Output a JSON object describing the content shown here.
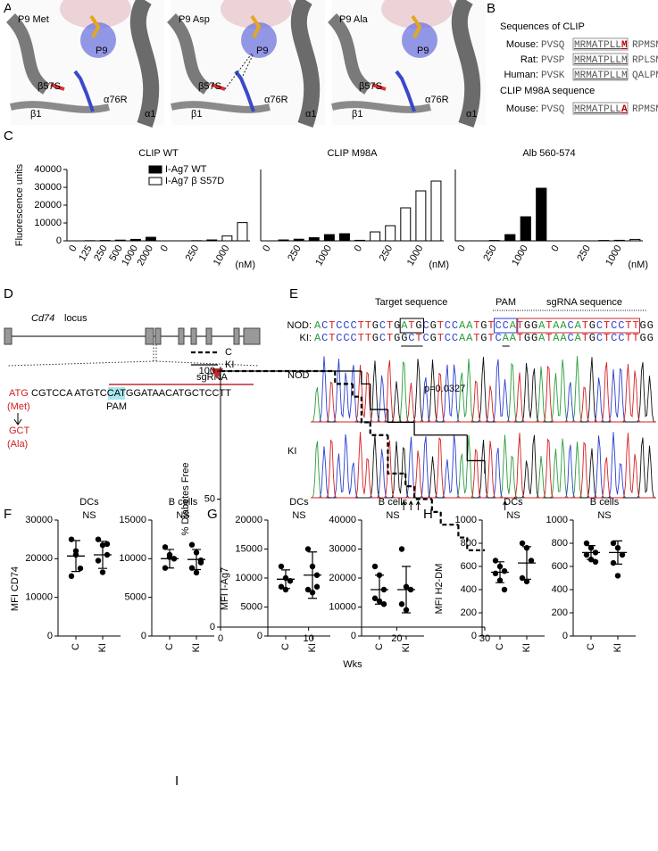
{
  "panel_labels": [
    "A",
    "B",
    "C",
    "D",
    "E",
    "F",
    "G",
    "H",
    "I"
  ],
  "structures": [
    {
      "residue": "P9 Met",
      "labels": [
        "P9",
        "β57S",
        "α76R",
        "β1",
        "α1"
      ]
    },
    {
      "residue": "P9 Asp",
      "labels": [
        "P9",
        "β57S",
        "α76R",
        "β1",
        "α1"
      ]
    },
    {
      "residue": "P9 Ala",
      "labels": [
        "P9",
        "β57S",
        "α76R",
        "β1",
        "α1"
      ]
    }
  ],
  "sequences": {
    "title": "Sequences of CLIP",
    "rows": [
      {
        "species": "Mouse:",
        "pre": "PVSQ",
        "core": "MRMATPLL",
        "p9": "M",
        "post": "RPMSM"
      },
      {
        "species": "Rat:",
        "pre": "PVSP",
        "core": "MRMATPLL",
        "p9": "M",
        "post": "RPLSM"
      },
      {
        "species": "Human:",
        "pre": "PVSK",
        "core": "MRMATPLL",
        "p9": "M",
        "post": "QALPM"
      }
    ],
    "mutant_title": "CLIP M98A sequence",
    "mutant_rows": [
      {
        "species": "Mouse:",
        "pre": "PVSQ",
        "core": "MRMATPLL",
        "p9": "A",
        "post": "RPMSM"
      }
    ]
  },
  "locus": {
    "gene": "Cd74",
    "label": "locus",
    "sgrna": "sgRNA",
    "codon": "ATG",
    "sequence": "CGTCCA ATGTCCATGGATAACATGCTCCTT",
    "pam": "PAM",
    "codon_aa": "(Met)",
    "new_codon": "GCT",
    "new_aa": "(Ala)"
  },
  "editing": {
    "target_label": "Target sequence",
    "pam_label": "PAM",
    "sgrna_label": "sgRNA sequence",
    "rows": [
      {
        "name": "NOD:",
        "sequence": "ACTCCCTTGCTGATGCGTCCAATGTCCATGGATAACATGCTCCTTGG"
      },
      {
        "name": "KI:",
        "sequence": "ACTCCCTTGCTGGCTCGTCCAATGTCAATGGATAACATGCTCCTTGG"
      }
    ],
    "tracks": [
      "NOD",
      "KI"
    ]
  },
  "chart_data": [
    {
      "type": "bar",
      "title": "CLIP WT",
      "ylabel": "Fluorescence units",
      "xlabel": "(nM)",
      "categories": [
        "0",
        "125",
        "250",
        "500",
        "1000",
        "2000",
        "0",
        null,
        "250",
        null,
        "1000",
        null
      ],
      "series": [
        {
          "name": "I-Ag7 WT",
          "color": "#000000",
          "values": [
            0,
            100,
            200,
            400,
            800,
            2000,
            null,
            null,
            null,
            null,
            null,
            null
          ]
        },
        {
          "name": "I-Ag7 β S57D",
          "color": "#ffffff",
          "values": [
            null,
            null,
            null,
            null,
            null,
            null,
            0,
            0,
            100,
            500,
            2800,
            10200
          ]
        }
      ],
      "legend": "top-left",
      "ylim": [
        0,
        40000
      ],
      "yticks": [
        0,
        10000,
        20000,
        30000,
        40000
      ]
    },
    {
      "type": "bar",
      "title": "CLIP M98A",
      "xlabel": "(nM)",
      "categories": [
        "0",
        null,
        "250",
        null,
        "1000",
        null,
        "0",
        null,
        "250",
        null,
        "1000",
        null
      ],
      "series": [
        {
          "color": "#000000",
          "values": [
            0,
            500,
            900,
            1800,
            3500,
            4000,
            null,
            null,
            null,
            null,
            null,
            null
          ]
        },
        {
          "color": "#ffffff",
          "values": [
            null,
            null,
            null,
            null,
            null,
            null,
            300,
            5000,
            8500,
            18500,
            28000,
            33500
          ]
        }
      ],
      "ylim": [
        0,
        40000
      ]
    },
    {
      "type": "bar",
      "title": "Alb 560-574",
      "xlabel": "(nM)",
      "categories": [
        "0",
        null,
        "250",
        null,
        "1000",
        null,
        "0",
        null,
        "250",
        null,
        "1000",
        null
      ],
      "series": [
        {
          "color": "#000000",
          "values": [
            0,
            0,
            200,
            3500,
            13500,
            29500,
            null,
            null,
            null,
            null,
            null,
            null
          ]
        },
        {
          "color": "#ffffff",
          "values": [
            null,
            null,
            null,
            null,
            null,
            null,
            0,
            0,
            0,
            200,
            300,
            800
          ]
        }
      ],
      "ylim": [
        0,
        40000
      ]
    },
    {
      "type": "dot",
      "title": "DCs",
      "annotation": "NS",
      "ylabel": "MFI CD74",
      "categories": [
        "C",
        "KI"
      ],
      "points": [
        [
          25000,
          22000,
          17500,
          15500,
          21000
        ],
        [
          25000,
          23500,
          21000,
          19500,
          16500,
          23800
        ]
      ],
      "means": [
        20700,
        21000
      ],
      "sds": [
        4000,
        3500
      ],
      "ylim": [
        0,
        30000
      ],
      "yticks": [
        0,
        10000,
        20000,
        30000
      ]
    },
    {
      "type": "dot",
      "title": "B cells",
      "annotation": "NS",
      "categories": [
        "C",
        "KI"
      ],
      "points": [
        [
          11500,
          10500,
          10000,
          8800,
          10200
        ],
        [
          11800,
          10800,
          9800,
          8800,
          8200,
          9500
        ]
      ],
      "means": [
        10000,
        9900
      ],
      "sds": [
        1200,
        1300
      ],
      "ylim": [
        0,
        15000
      ],
      "yticks": [
        0,
        5000,
        10000,
        15000
      ]
    },
    {
      "type": "dot",
      "title": "DCs",
      "annotation": "NS",
      "ylabel": "MFI I-Ag7",
      "categories": [
        "C",
        "KI"
      ],
      "points": [
        [
          12000,
          10000,
          9500,
          8500,
          8000
        ],
        [
          15000,
          12000,
          10500,
          8000,
          7500,
          8500
        ]
      ],
      "means": [
        9800,
        10500
      ],
      "sds": [
        1600,
        4000
      ],
      "ylim": [
        0,
        20000
      ],
      "yticks": [
        0,
        5000,
        10000,
        15000,
        20000
      ]
    },
    {
      "type": "dot",
      "title": "B cells",
      "annotation": "NS",
      "categories": [
        "C",
        "KI"
      ],
      "points": [
        [
          24000,
          21000,
          16000,
          13000,
          12000,
          11000
        ],
        [
          30000,
          17000,
          16000,
          11000,
          9000
        ]
      ],
      "means": [
        16000,
        16000
      ],
      "sds": [
        5000,
        8000
      ],
      "ylim": [
        0,
        40000
      ],
      "yticks": [
        0,
        10000,
        20000,
        30000,
        40000
      ]
    },
    {
      "type": "dot",
      "title": "DCs",
      "annotation": "NS",
      "ylabel": "MFI H2-DM",
      "categories": [
        "C",
        "KI"
      ],
      "points": [
        [
          650,
          600,
          560,
          540,
          480,
          400
        ],
        [
          800,
          760,
          650,
          500,
          470
        ]
      ],
      "means": [
        550,
        630
      ],
      "sds": [
        90,
        140
      ],
      "ylim": [
        0,
        1000
      ],
      "yticks": [
        0,
        200,
        400,
        600,
        800,
        1000
      ]
    },
    {
      "type": "dot",
      "title": "B cells",
      "annotation": "NS",
      "categories": [
        "C",
        "KI"
      ],
      "points": [
        [
          800,
          760,
          720,
          700,
          660,
          640
        ],
        [
          800,
          760,
          700,
          630,
          520
        ]
      ],
      "means": [
        720,
        720
      ],
      "sds": [
        60,
        100
      ],
      "ylim": [
        0,
        1000
      ],
      "yticks": [
        0,
        200,
        400,
        600,
        800,
        1000
      ]
    },
    {
      "type": "survival",
      "xlabel": "Wks",
      "ylabel": "% Diabetes Free",
      "annotation": "p=0.0327",
      "series": [
        {
          "name": "C",
          "color": "#000000",
          "line_style": "dashed",
          "x": [
            0,
            13,
            15,
            16,
            17,
            19,
            21,
            22,
            24,
            25,
            27,
            28,
            30
          ],
          "values": [
            100,
            95,
            90,
            80,
            75,
            60,
            55,
            50,
            45,
            40,
            35,
            30,
            30
          ]
        },
        {
          "name": "KI",
          "color": "#000000",
          "line_style": "solid",
          "x": [
            0,
            16,
            17,
            19,
            22,
            28,
            30
          ],
          "values": [
            100,
            95,
            85,
            80,
            75,
            65,
            60
          ]
        }
      ],
      "legend": "top-left",
      "xlim": [
        0,
        30
      ],
      "ylim": [
        0,
        100
      ],
      "xticks": [
        0,
        10,
        20,
        30
      ],
      "yticks": [
        0,
        50,
        100
      ]
    }
  ]
}
